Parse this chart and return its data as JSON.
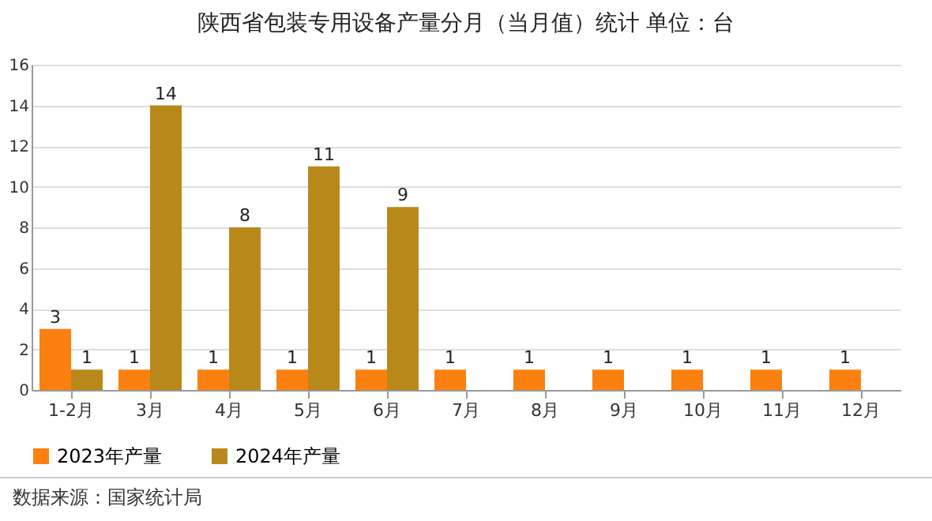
{
  "chart_data": {
    "type": "bar",
    "title": "陕西省包装专用设备产量分月（当月值）统计  单位：台",
    "categories": [
      "1-2月",
      "3月",
      "4月",
      "5月",
      "6月",
      "7月",
      "8月",
      "9月",
      "10月",
      "11月",
      "12月"
    ],
    "series": [
      {
        "name": "2023年产量",
        "color": "#fb8010",
        "values": [
          3,
          1,
          1,
          1,
          1,
          1,
          1,
          1,
          1,
          1,
          1
        ]
      },
      {
        "name": "2024年产量",
        "color": "#b8891a",
        "values": [
          1,
          14,
          8,
          11,
          9,
          null,
          null,
          null,
          null,
          null,
          null
        ]
      }
    ],
    "ylim": [
      0,
      16
    ],
    "yticks": [
      0,
      2,
      4,
      6,
      8,
      10,
      12,
      14,
      16
    ],
    "grid": "y",
    "legend": "bottom",
    "data_labels": true,
    "annotations": [
      "数据来源：国家统计局"
    ]
  }
}
